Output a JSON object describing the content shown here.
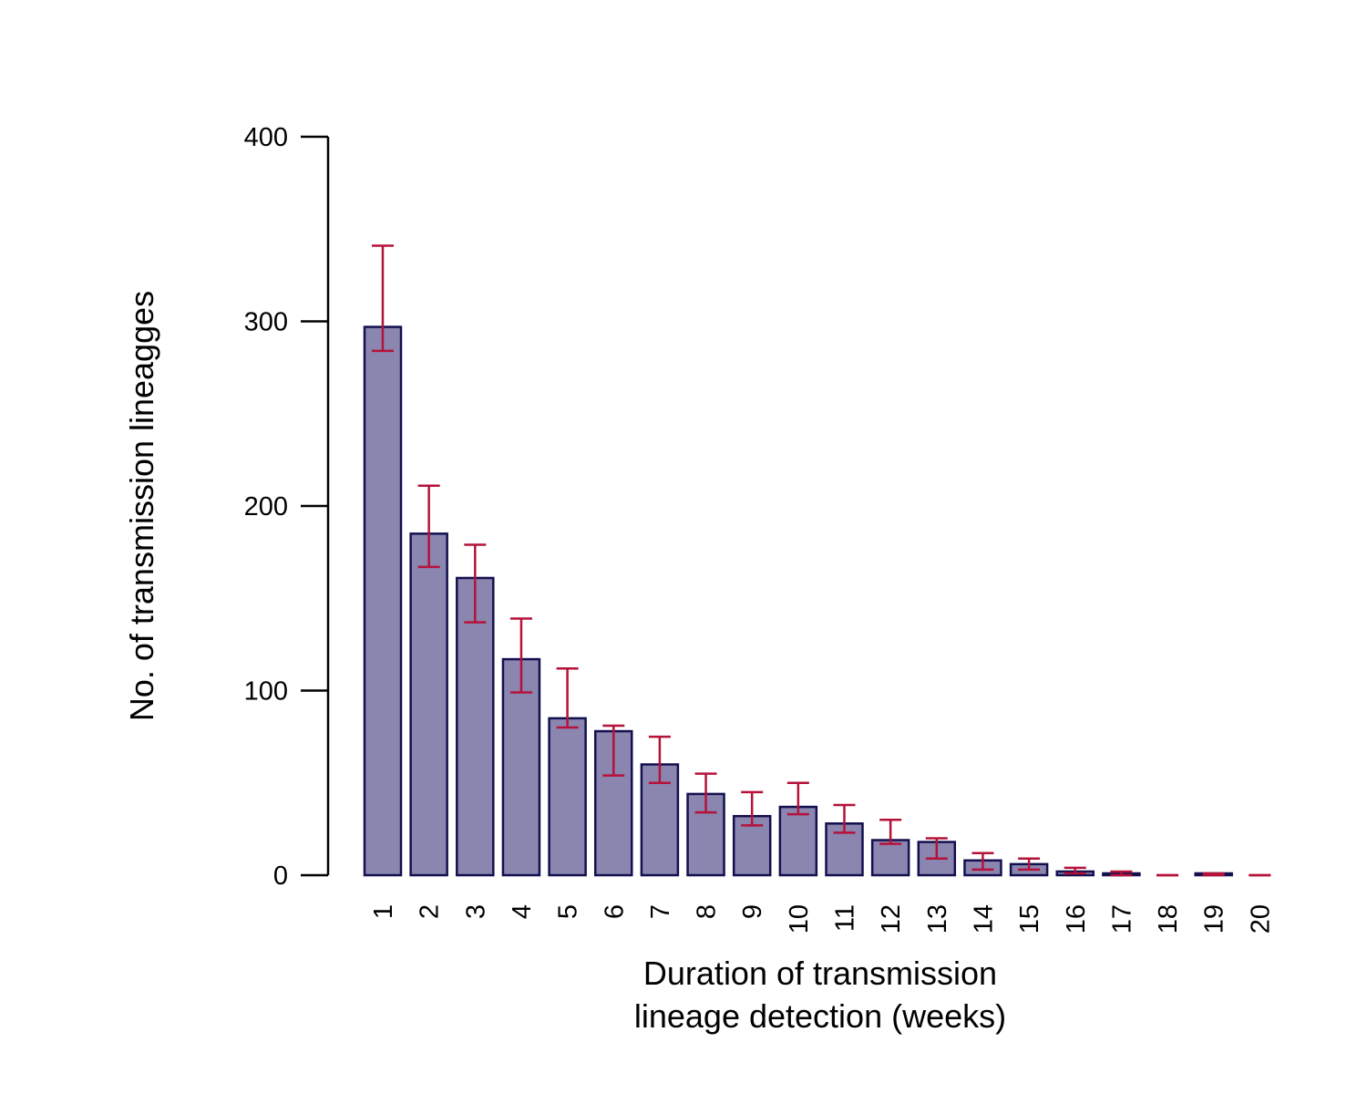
{
  "chart_data": {
    "type": "bar",
    "categories": [
      "1",
      "2",
      "3",
      "4",
      "5",
      "6",
      "7",
      "8",
      "9",
      "10",
      "11",
      "12",
      "13",
      "14",
      "15",
      "16",
      "17",
      "18",
      "19",
      "20"
    ],
    "values": [
      297,
      185,
      161,
      117,
      85,
      78,
      60,
      44,
      32,
      37,
      28,
      19,
      18,
      8,
      6,
      2,
      1,
      0,
      1,
      0
    ],
    "error_low": [
      284,
      167,
      137,
      99,
      80,
      54,
      50,
      34,
      27,
      33,
      23,
      17,
      9,
      3,
      3,
      1,
      0,
      0,
      0,
      0
    ],
    "error_high": [
      341,
      211,
      179,
      139,
      112,
      81,
      75,
      55,
      45,
      50,
      38,
      30,
      20,
      12,
      9,
      4,
      2,
      0,
      1,
      0
    ],
    "xlabel_line1": "Duration of transmission",
    "xlabel_line2": "lineage detection (weeks)",
    "ylabel": "No. of transmission lineagges",
    "yticks": [
      0,
      100,
      200,
      300,
      400
    ],
    "ylim": [
      0,
      400
    ],
    "grid": false,
    "colors": {
      "bar_fill": "#8a86b0",
      "bar_stroke": "#13104f",
      "error_bar": "#b5123a",
      "axis": "#000000"
    }
  }
}
